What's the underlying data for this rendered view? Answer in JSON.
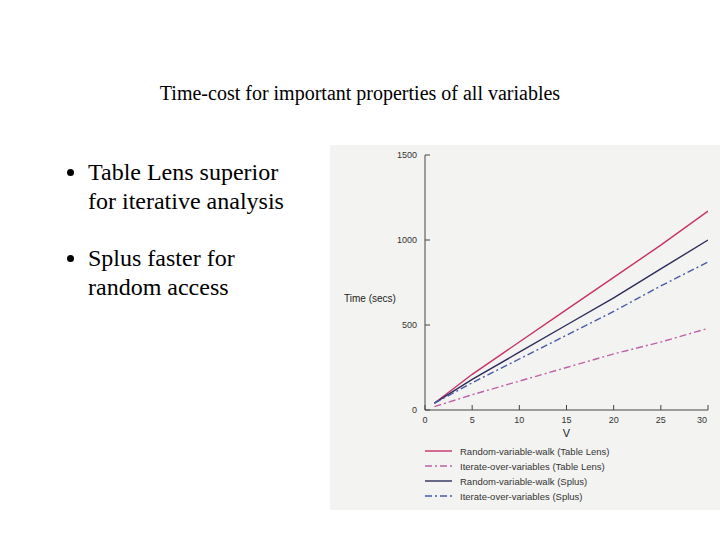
{
  "chart_data": {
    "type": "line",
    "title": "Time-cost for important properties of all variables",
    "annotations": [
      "Table Lens superior for iterative analysis",
      "Splus faster for random access"
    ],
    "x_label": "V",
    "y_label": "Time (secs)",
    "x": [
      1,
      5,
      10,
      15,
      20,
      25,
      30
    ],
    "series": [
      {
        "name": "Random-variable-walk (Table Lens)",
        "color": "#c8306a",
        "line_style": "solid",
        "values": [
          40,
          210,
          400,
          590,
          780,
          970,
          1170
        ]
      },
      {
        "name": "Iterate-over-variables (Table Lens)",
        "color": "#c060a8",
        "line_style": "dash-dot",
        "values": [
          20,
          90,
          170,
          250,
          330,
          400,
          480
        ]
      },
      {
        "name": "Random-variable-walk (Splus)",
        "color": "#2c2c5c",
        "line_style": "solid",
        "values": [
          40,
          180,
          340,
          500,
          660,
          830,
          1000
        ]
      },
      {
        "name": "Iterate-over-variables (Splus)",
        "color": "#4a5aa8",
        "line_style": "dash-dot",
        "values": [
          40,
          160,
          300,
          440,
          580,
          730,
          870
        ]
      }
    ],
    "xlim": [
      0,
      30
    ],
    "xticks": [
      0,
      5,
      10,
      15,
      20,
      25,
      30
    ],
    "ylim": [
      0,
      1500
    ],
    "yticks": [
      0,
      500,
      1000,
      1500
    ],
    "grid": false
  }
}
